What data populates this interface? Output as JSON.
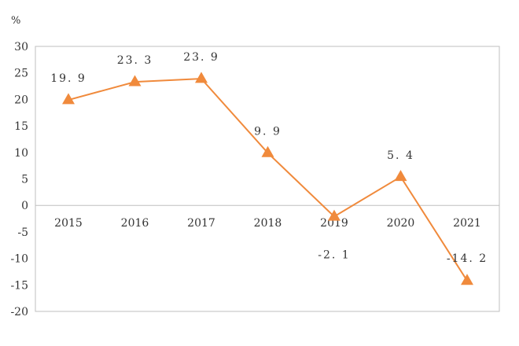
{
  "chart_data": {
    "type": "line",
    "unit_label": "%",
    "categories": [
      "2015",
      "2016",
      "2017",
      "2018",
      "2019",
      "2020",
      "2021"
    ],
    "series": [
      {
        "values": [
          19.9,
          23.3,
          23.9,
          9.9,
          -2.1,
          5.4,
          -14.2
        ],
        "labels": [
          "19. 9",
          "23. 3",
          "23. 9",
          "9. 9",
          "-2. 1",
          "5. 4",
          "-14. 2"
        ]
      }
    ],
    "yticks": [
      "30",
      "25",
      "20",
      "15",
      "10",
      "5",
      "0",
      "-5",
      "-10",
      "-15",
      "-20"
    ],
    "ylim": [
      -20,
      30
    ],
    "grid": false,
    "colors": {
      "line": "#f08a3c",
      "marker": "#f08a3c",
      "axis": "#bfbfbf"
    }
  }
}
